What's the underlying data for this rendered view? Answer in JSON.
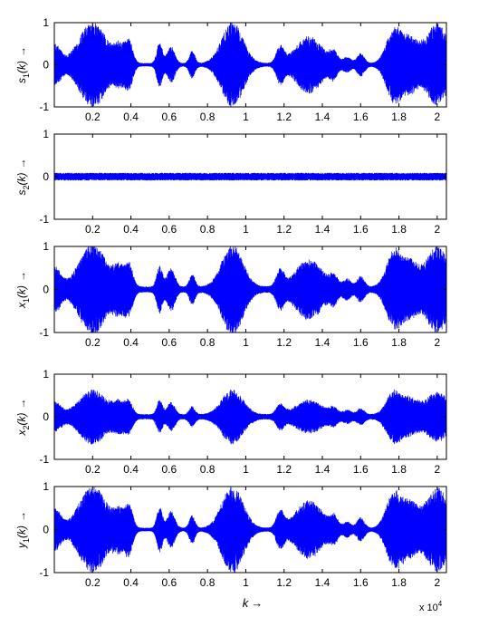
{
  "figure": {
    "xlabel_text": "k",
    "xlabel_arrow": "→",
    "x_exponent_base": "x 10",
    "x_exponent_power": "4"
  },
  "chart_data": [
    {
      "type": "line",
      "ylabel": {
        "base": "s",
        "sub": "1",
        "arg": "(k)",
        "arrow": "→"
      },
      "xlim": [
        0,
        20480
      ],
      "ylim": [
        -1,
        1
      ],
      "xticks": [
        2000,
        4000,
        6000,
        8000,
        10000,
        12000,
        14000,
        16000,
        18000,
        20000
      ],
      "xticklabels": [
        "0.2",
        "0.4",
        "0.6",
        "0.8",
        "1",
        "1.2",
        "1.4",
        "1.6",
        "1.8",
        "2"
      ],
      "yticks": [
        -1,
        0,
        1
      ],
      "yticklabels": [
        "-1",
        "0",
        "1"
      ],
      "color": "#0000ff",
      "noise_floor": 0.04,
      "bursts": [
        [
          50,
          300,
          0.45
        ],
        [
          2000,
          700,
          1.0
        ],
        [
          3400,
          300,
          0.4
        ],
        [
          3900,
          200,
          0.5
        ],
        [
          5500,
          150,
          0.5
        ],
        [
          6100,
          200,
          0.4
        ],
        [
          7200,
          150,
          0.3
        ],
        [
          9300,
          550,
          1.0
        ],
        [
          11800,
          200,
          0.4
        ],
        [
          13300,
          700,
          0.65
        ],
        [
          14600,
          200,
          0.25
        ],
        [
          15300,
          200,
          0.15
        ],
        [
          16000,
          200,
          0.25
        ],
        [
          17750,
          400,
          0.85
        ],
        [
          18600,
          400,
          0.55
        ],
        [
          20000,
          600,
          0.95
        ]
      ]
    },
    {
      "type": "line",
      "ylabel": {
        "base": "s",
        "sub": "2",
        "arg": "(k)",
        "arrow": "→"
      },
      "xlim": [
        0,
        20480
      ],
      "ylim": [
        -1,
        1
      ],
      "xticks": [
        2000,
        4000,
        6000,
        8000,
        10000,
        12000,
        14000,
        16000,
        18000,
        20000
      ],
      "xticklabels": [
        "0.2",
        "0.4",
        "0.6",
        "0.8",
        "1",
        "1.2",
        "1.4",
        "1.6",
        "1.8",
        "2"
      ],
      "yticks": [
        -1,
        0,
        1
      ],
      "yticklabels": [
        "-1",
        "0",
        "1"
      ],
      "color": "#0000ff",
      "noise_floor": 0.09,
      "bursts": []
    },
    {
      "type": "line",
      "ylabel": {
        "base": "x",
        "sub": "1",
        "arg": "(k)",
        "arrow": "→"
      },
      "xlim": [
        0,
        20480
      ],
      "ylim": [
        -1,
        1
      ],
      "xticks": [
        2000,
        4000,
        6000,
        8000,
        10000,
        12000,
        14000,
        16000,
        18000,
        20000
      ],
      "xticklabels": [
        "0.2",
        "0.4",
        "0.6",
        "0.8",
        "1",
        "1.2",
        "1.4",
        "1.6",
        "1.8",
        "2"
      ],
      "yticks": [
        -1,
        0,
        1
      ],
      "yticklabels": [
        "-1",
        "0",
        "1"
      ],
      "color": "#0000ff",
      "noise_floor": 0.07,
      "bursts": [
        [
          50,
          300,
          0.45
        ],
        [
          2000,
          700,
          1.0
        ],
        [
          3400,
          300,
          0.45
        ],
        [
          3900,
          200,
          0.5
        ],
        [
          5500,
          150,
          0.5
        ],
        [
          6100,
          200,
          0.45
        ],
        [
          7200,
          150,
          0.3
        ],
        [
          9300,
          550,
          1.0
        ],
        [
          11800,
          200,
          0.4
        ],
        [
          13300,
          700,
          0.65
        ],
        [
          14600,
          200,
          0.25
        ],
        [
          15300,
          200,
          0.2
        ],
        [
          16000,
          200,
          0.25
        ],
        [
          17750,
          400,
          0.85
        ],
        [
          18600,
          400,
          0.55
        ],
        [
          20000,
          600,
          0.95
        ]
      ]
    },
    {
      "type": "line",
      "ylabel": {
        "base": "x",
        "sub": "2",
        "arg": "(k)",
        "arrow": "→"
      },
      "xlim": [
        0,
        20480
      ],
      "ylim": [
        -1,
        1
      ],
      "xticks": [
        2000,
        4000,
        6000,
        8000,
        10000,
        12000,
        14000,
        16000,
        18000,
        20000
      ],
      "xticklabels": [
        "0.2",
        "0.4",
        "0.6",
        "0.8",
        "1",
        "1.2",
        "1.4",
        "1.6",
        "1.8",
        "2"
      ],
      "yticks": [
        -1,
        0,
        1
      ],
      "yticklabels": [
        "-1",
        "0",
        "1"
      ],
      "color": "#0000ff",
      "noise_floor": 0.06,
      "bursts": [
        [
          50,
          300,
          0.3
        ],
        [
          2000,
          700,
          0.6
        ],
        [
          3400,
          300,
          0.3
        ],
        [
          3900,
          200,
          0.3
        ],
        [
          5500,
          150,
          0.35
        ],
        [
          6100,
          200,
          0.3
        ],
        [
          7200,
          150,
          0.2
        ],
        [
          9300,
          550,
          0.6
        ],
        [
          11800,
          200,
          0.25
        ],
        [
          13300,
          700,
          0.35
        ],
        [
          14600,
          200,
          0.15
        ],
        [
          15300,
          200,
          0.12
        ],
        [
          16000,
          200,
          0.15
        ],
        [
          17750,
          400,
          0.55
        ],
        [
          18600,
          400,
          0.35
        ],
        [
          20000,
          600,
          0.55
        ]
      ]
    },
    {
      "type": "line",
      "ylabel": {
        "base": "y",
        "sub": "1",
        "arg": "(k)",
        "arrow": "→"
      },
      "xlim": [
        0,
        20480
      ],
      "ylim": [
        -1,
        1
      ],
      "xticks": [
        2000,
        4000,
        6000,
        8000,
        10000,
        12000,
        14000,
        16000,
        18000,
        20000
      ],
      "xticklabels": [
        "0.2",
        "0.4",
        "0.6",
        "0.8",
        "1",
        "1.2",
        "1.4",
        "1.6",
        "1.8",
        "2"
      ],
      "yticks": [
        -1,
        0,
        1
      ],
      "yticklabels": [
        "-1",
        "0",
        "1"
      ],
      "color": "#0000ff",
      "noise_floor": 0.04,
      "bursts": [
        [
          50,
          300,
          0.45
        ],
        [
          2000,
          700,
          1.0
        ],
        [
          3400,
          300,
          0.4
        ],
        [
          3900,
          200,
          0.5
        ],
        [
          5500,
          150,
          0.5
        ],
        [
          6100,
          200,
          0.4
        ],
        [
          7200,
          150,
          0.3
        ],
        [
          9300,
          550,
          1.0
        ],
        [
          11800,
          200,
          0.4
        ],
        [
          13300,
          700,
          0.65
        ],
        [
          14600,
          200,
          0.25
        ],
        [
          15300,
          200,
          0.15
        ],
        [
          16000,
          200,
          0.25
        ],
        [
          17750,
          400,
          0.85
        ],
        [
          18600,
          400,
          0.55
        ],
        [
          20000,
          600,
          0.95
        ]
      ]
    }
  ]
}
